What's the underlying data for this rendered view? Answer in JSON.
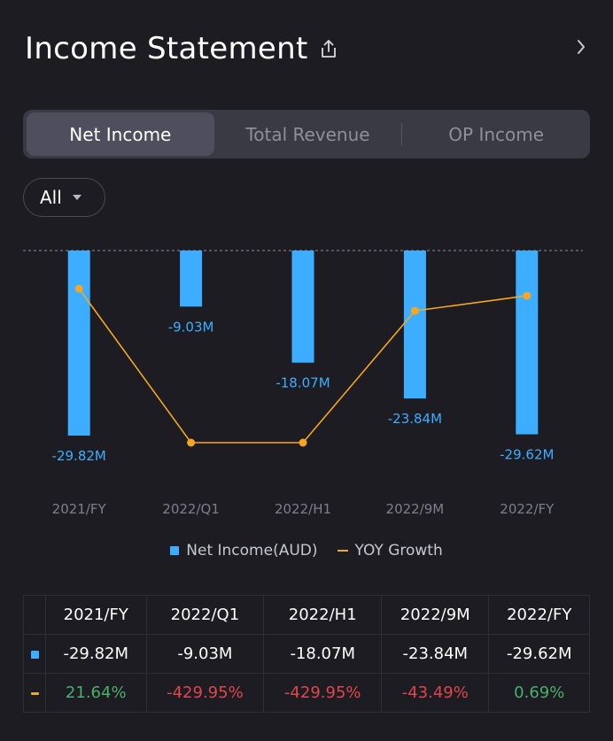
{
  "header": {
    "title": "Income Statement"
  },
  "tabs": [
    {
      "label": "Net Income",
      "active": true
    },
    {
      "label": "Total Revenue",
      "active": false
    },
    {
      "label": "OP Income",
      "active": false
    }
  ],
  "filter": {
    "label": "All"
  },
  "legend": {
    "bar_label": "Net Income(AUD)",
    "line_label": "YOY Growth"
  },
  "colors": {
    "bar": "#3daeff",
    "line": "#f5a623",
    "positive": "#4caf6a",
    "negative": "#e0464a"
  },
  "chart_data": {
    "type": "bar",
    "categories": [
      "2021/FY",
      "2022/Q1",
      "2022/H1",
      "2022/9M",
      "2022/FY"
    ],
    "series": [
      {
        "name": "Net Income(AUD)",
        "kind": "bar",
        "values": [
          -29.82,
          -9.03,
          -18.07,
          -23.84,
          -29.62
        ],
        "labels": [
          "-29.82M",
          "-9.03M",
          "-18.07M",
          "-23.84M",
          "-29.62M"
        ]
      },
      {
        "name": "YOY Growth",
        "kind": "line",
        "values": [
          21.64,
          -429.95,
          -429.95,
          -43.49,
          0.69
        ],
        "labels": [
          "21.64%",
          "-429.95%",
          "-429.95%",
          "-43.49%",
          "0.69%"
        ]
      }
    ],
    "title": "Income Statement",
    "xlabel": "",
    "ylabel": "",
    "ylim": [
      -29.82,
      0
    ],
    "line_ylim": [
      -429.95,
      21.64
    ],
    "grid": false,
    "legend": "bottom-center"
  },
  "table": {
    "headers": [
      "2021/FY",
      "2022/Q1",
      "2022/H1",
      "2022/9M",
      "2022/FY"
    ],
    "rows": [
      {
        "key": "bar",
        "cells": [
          "-29.82M",
          "-9.03M",
          "-18.07M",
          "-23.84M",
          "-29.62M"
        ]
      },
      {
        "key": "line",
        "cells": [
          "21.64%",
          "-429.95%",
          "-429.95%",
          "-43.49%",
          "0.69%"
        ]
      }
    ]
  }
}
